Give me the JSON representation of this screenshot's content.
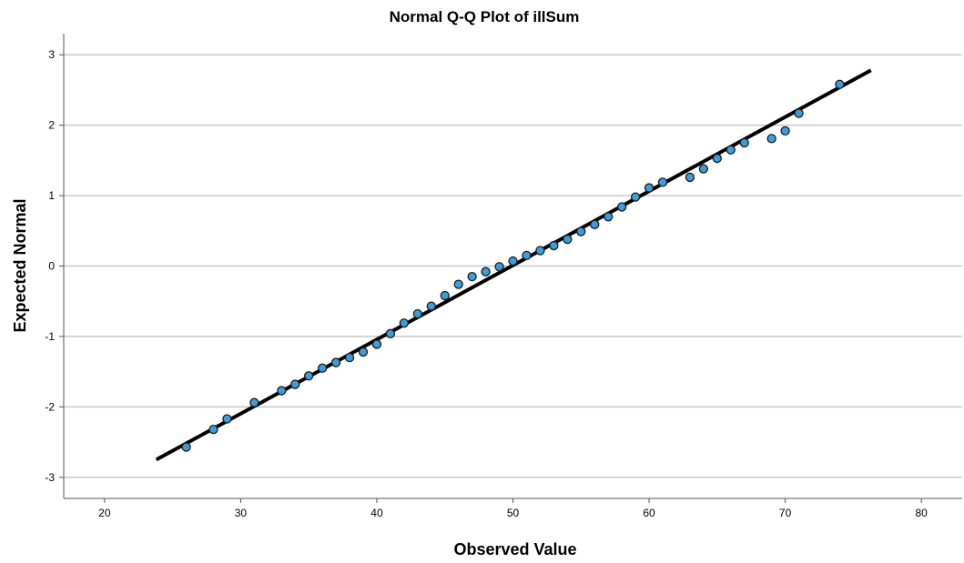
{
  "chart_data": {
    "type": "scatter",
    "title": "Normal Q-Q Plot of illSum",
    "xlabel": "Observed Value",
    "ylabel": "Expected Normal",
    "xlim": [
      17,
      83
    ],
    "ylim": [
      -3.3,
      3.3
    ],
    "x_ticks": [
      20,
      30,
      40,
      50,
      60,
      70,
      80
    ],
    "y_ticks": [
      -3,
      -2,
      -1,
      0,
      1,
      2,
      3
    ],
    "grid": "horizontal",
    "colors": {
      "point_fill": "#3B9EDB",
      "point_stroke": "#1a1a1a",
      "reference_line": "#000000",
      "grid": "#c8c8c8",
      "axis": "#555555"
    },
    "reference_line": {
      "x": [
        23.8,
        76.3
      ],
      "y": [
        -2.75,
        2.78
      ]
    },
    "series": [
      {
        "x": [
          26,
          28,
          29,
          31,
          33,
          34,
          35,
          36,
          37,
          38,
          39,
          40,
          41,
          42,
          43,
          44,
          45,
          46,
          47,
          48,
          49,
          50,
          51,
          52,
          53,
          54,
          55,
          56,
          57,
          58,
          59,
          60,
          61,
          63,
          64,
          65,
          66,
          67,
          69,
          70,
          71,
          74
        ],
        "y": [
          -2.57,
          -2.32,
          -2.17,
          -1.94,
          -1.77,
          -1.68,
          -1.56,
          -1.45,
          -1.37,
          -1.3,
          -1.22,
          -1.11,
          -0.96,
          -0.81,
          -0.68,
          -0.57,
          -0.42,
          -0.26,
          -0.15,
          -0.08,
          -0.01,
          0.07,
          0.15,
          0.22,
          0.29,
          0.38,
          0.49,
          0.59,
          0.7,
          0.84,
          0.98,
          1.11,
          1.19,
          1.26,
          1.38,
          1.53,
          1.65,
          1.75,
          1.81,
          1.92,
          2.17,
          2.58
        ]
      }
    ]
  }
}
